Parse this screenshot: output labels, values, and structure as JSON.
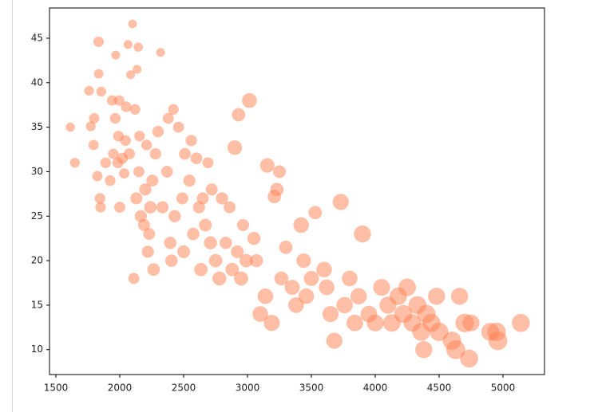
{
  "chart_data": {
    "type": "scatter",
    "color": "#ff7f50",
    "x": [
      1613,
      1649,
      1760,
      1773,
      1795,
      1800,
      1825,
      1834,
      1835,
      1845,
      1850,
      1855,
      1890,
      1925,
      1940,
      1950,
      1965,
      1968,
      1985,
      1990,
      1995,
      2000,
      2020,
      2035,
      2045,
      2050,
      2065,
      2075,
      2085,
      2100,
      2110,
      2120,
      2130,
      2135,
      2145,
      2150,
      2155,
      2165,
      2190,
      2200,
      2210,
      2220,
      2230,
      2240,
      2255,
      2265,
      2280,
      2300,
      2320,
      2335,
      2370,
      2380,
      2395,
      2405,
      2420,
      2430,
      2460,
      2490,
      2500,
      2510,
      2545,
      2560,
      2575,
      2600,
      2620,
      2635,
      2650,
      2670,
      2690,
      2710,
      2720,
      2750,
      2780,
      2800,
      2830,
      2860,
      2880,
      2900,
      2920,
      2930,
      2950,
      2965,
      2990,
      3015,
      3050,
      3070,
      3100,
      3140,
      3155,
      3190,
      3210,
      3230,
      3250,
      3265,
      3300,
      3350,
      3380,
      3420,
      3440,
      3460,
      3500,
      3530,
      3600,
      3620,
      3650,
      3680,
      3730,
      3760,
      3800,
      3840,
      3870,
      3900,
      3950,
      4000,
      4050,
      4100,
      4130,
      4180,
      4220,
      4250,
      4290,
      4330,
      4360,
      4380,
      4400,
      4440,
      4480,
      4500,
      4600,
      4630,
      4660,
      4700,
      4735,
      4750,
      4900,
      4950,
      4960,
      5140
    ],
    "values": [
      35,
      31,
      39.1,
      35.1,
      33,
      36,
      29.5,
      44.6,
      41,
      27,
      26,
      39,
      31,
      29,
      38,
      32,
      36,
      43.1,
      31,
      34,
      38,
      26,
      31.5,
      29.8,
      33.5,
      37.3,
      44.3,
      32,
      40.9,
      46.6,
      18,
      37,
      27,
      41.5,
      44,
      30,
      34,
      25,
      24,
      28,
      33,
      21,
      23,
      26,
      29,
      19,
      32,
      34.5,
      43.4,
      26,
      30,
      36,
      22,
      20,
      37,
      25,
      35,
      27,
      21,
      32,
      29,
      33.5,
      23,
      31.5,
      26,
      19,
      27,
      24,
      31,
      22,
      28,
      20,
      18,
      27,
      22,
      26,
      19,
      32.7,
      21,
      36.4,
      18,
      24,
      20,
      38,
      22.5,
      20,
      14,
      16,
      30.7,
      13,
      27.2,
      28,
      30,
      18,
      21.5,
      17,
      15,
      24,
      20,
      16,
      18,
      25.4,
      19,
      17,
      14,
      11,
      26.6,
      15,
      18,
      13,
      16,
      23,
      14,
      13,
      17,
      15,
      13,
      16,
      14,
      17,
      13,
      15,
      12,
      10,
      14,
      13,
      16,
      12,
      11,
      10,
      16,
      13,
      9,
      13,
      12,
      12,
      11,
      13
    ],
    "sizes": [
      52,
      60,
      58,
      60,
      65,
      67,
      65,
      67,
      55,
      70,
      68,
      60,
      70,
      70,
      65,
      68,
      70,
      48,
      75,
      70,
      67,
      75,
      75,
      65,
      70,
      69,
      48,
      76,
      48,
      46,
      75,
      68,
      88,
      48,
      52,
      75,
      70,
      90,
      88,
      90,
      70,
      90,
      86,
      95,
      88,
      97,
      80,
      80,
      48,
      90,
      85,
      74,
      95,
      95,
      68,
      92,
      75,
      88,
      100,
      84,
      90,
      80,
      95,
      84,
      90,
      110,
      88,
      100,
      75,
      105,
      88,
      110,
      120,
      92,
      95,
      88,
      110,
      132,
      100,
      110,
      122,
      90,
      110,
      135,
      105,
      105,
      150,
      150,
      130,
      160,
      110,
      110,
      100,
      120,
      110,
      140,
      150,
      150,
      130,
      150,
      140,
      110,
      150,
      150,
      160,
      160,
      160,
      165,
      150,
      170,
      165,
      180,
      170,
      175,
      175,
      180,
      190,
      190,
      200,
      190,
      190,
      200,
      200,
      180,
      210,
      200,
      180,
      210,
      210,
      220,
      180,
      210,
      200,
      175,
      198,
      210,
      220,
      200
    ],
    "xlim": [
      1450,
      5325
    ],
    "ylim": [
      7.2,
      48.4
    ],
    "xticks": [
      1500,
      2000,
      2500,
      3000,
      3500,
      4000,
      4500,
      5000
    ],
    "yticks": [
      10,
      15,
      20,
      25,
      30,
      35,
      40,
      45
    ]
  }
}
